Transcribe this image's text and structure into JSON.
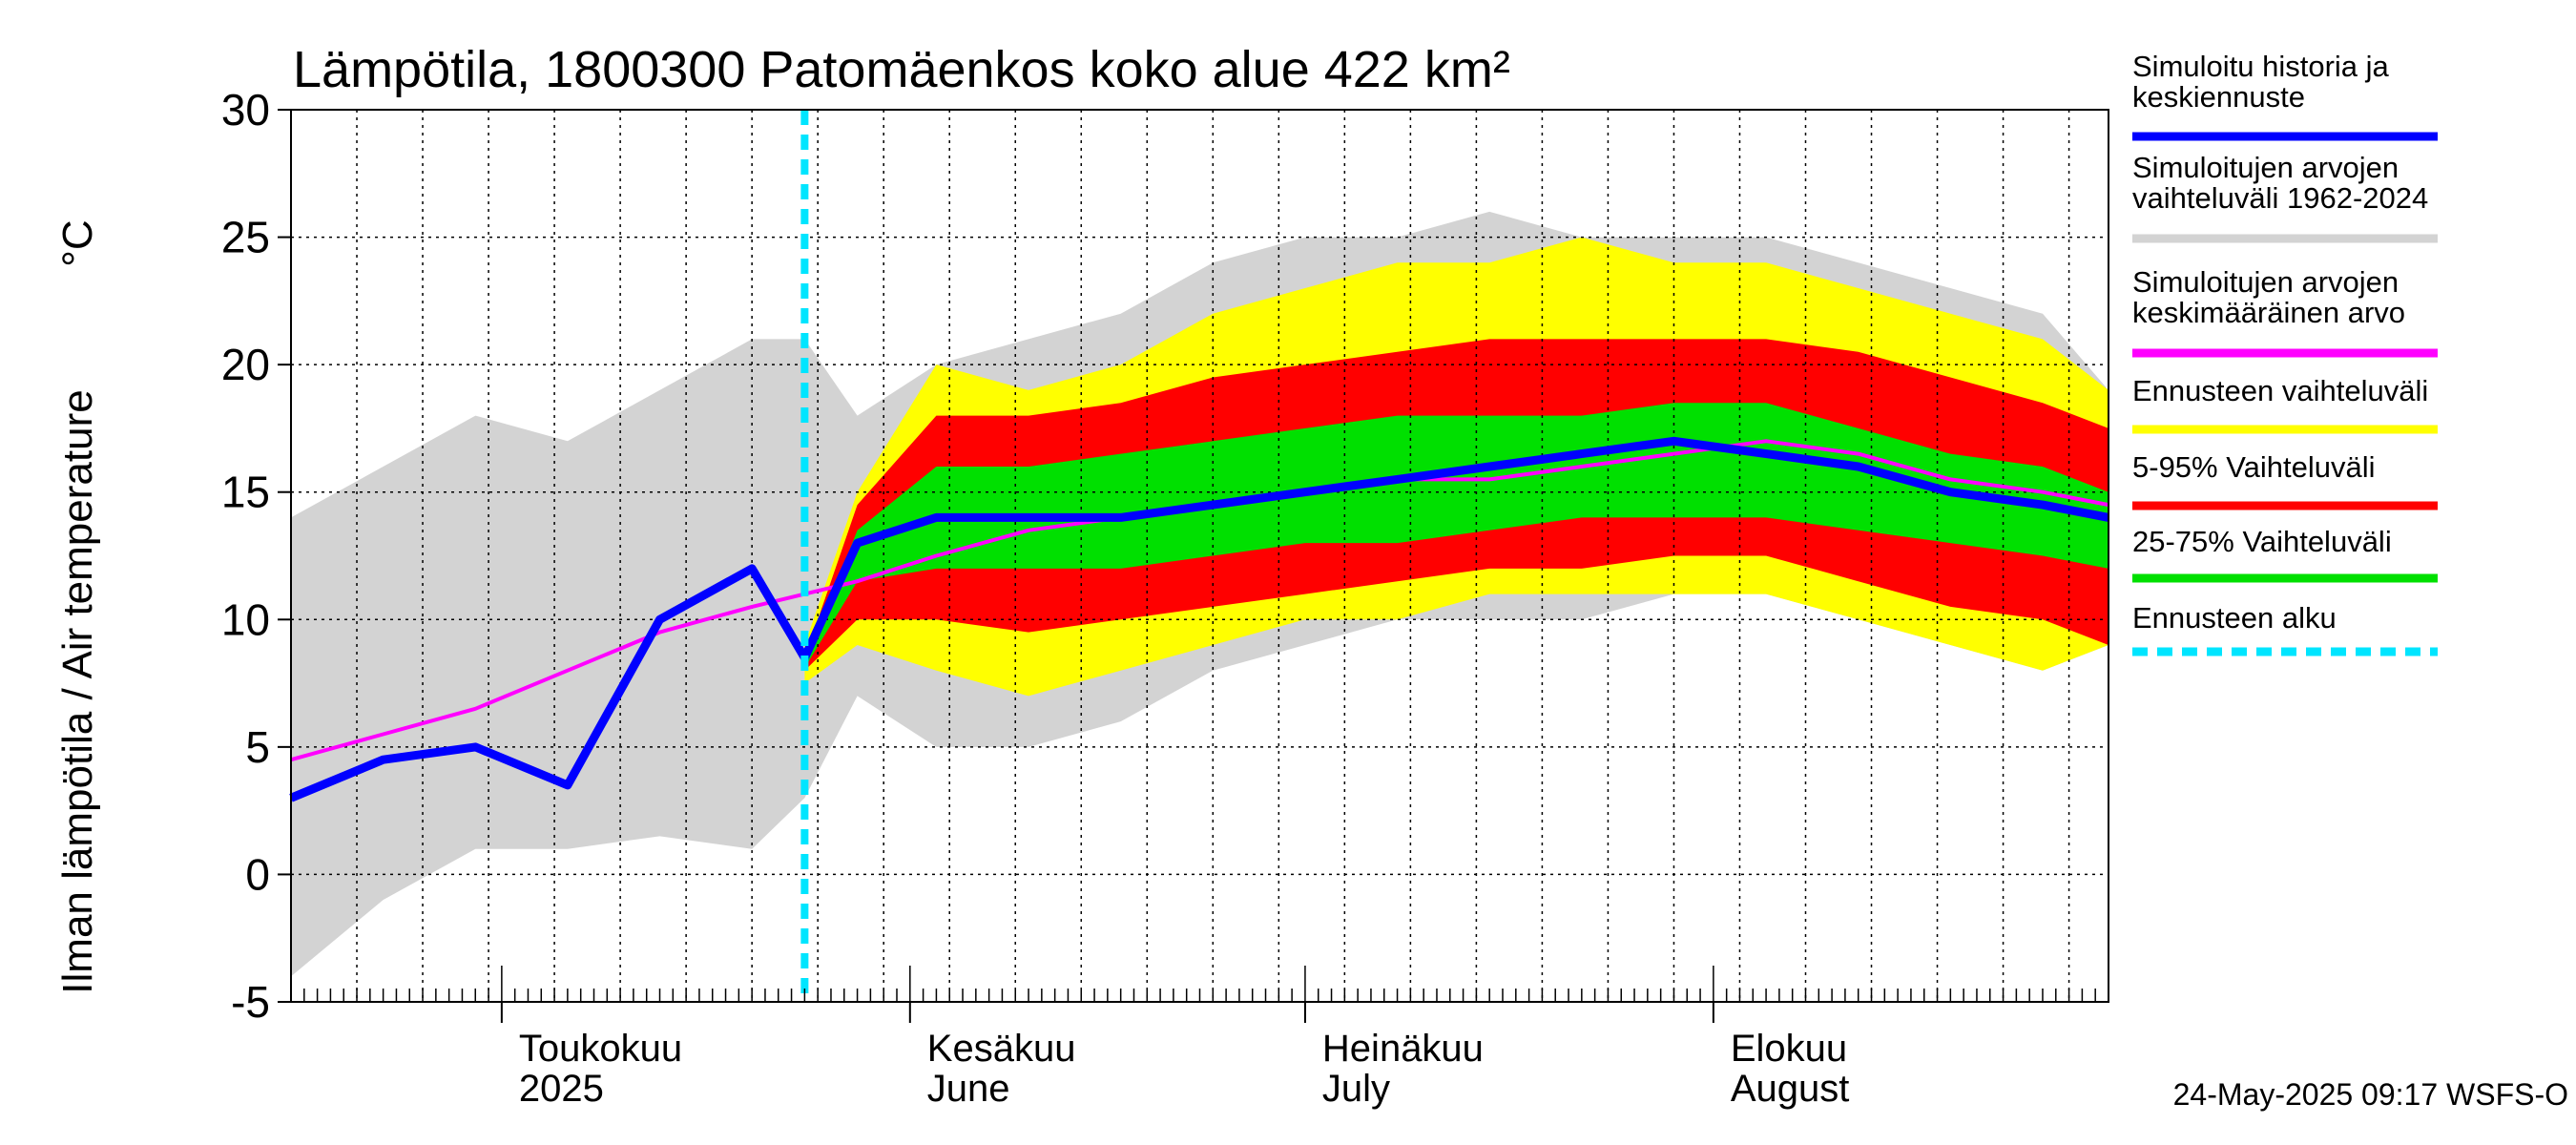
{
  "chart_data": {
    "type": "area",
    "title": "Lämpötila, 1800300 Patomäenkos koko alue 422 km²",
    "ylabel": "Ilman lämpötila / Air temperature",
    "yunit": "°C",
    "ylim": [
      -5,
      30
    ],
    "yticks": [
      -5,
      0,
      5,
      10,
      15,
      20,
      25,
      30
    ],
    "xlim": [
      "2025-04-15",
      "2025-08-31"
    ],
    "grid": true,
    "legend_position": "right",
    "forecast_start": "2025-05-24",
    "month_labels": [
      {
        "date": "2025-05-01",
        "line1": "Toukokuu",
        "line2": "2025"
      },
      {
        "date": "2025-06-01",
        "line1": "Kesäkuu",
        "line2": "June"
      },
      {
        "date": "2025-07-01",
        "line1": "Heinäkuu",
        "line2": "July"
      },
      {
        "date": "2025-08-01",
        "line1": "Elokuu",
        "line2": "August"
      }
    ],
    "x_knots": [
      "2025-04-15",
      "2025-04-22",
      "2025-04-29",
      "2025-05-06",
      "2025-05-13",
      "2025-05-20",
      "2025-05-24",
      "2025-05-28",
      "2025-06-03",
      "2025-06-10",
      "2025-06-17",
      "2025-06-24",
      "2025-07-01",
      "2025-07-08",
      "2025-07-15",
      "2025-07-22",
      "2025-07-29",
      "2025-08-05",
      "2025-08-12",
      "2025-08-19",
      "2025-08-26",
      "2025-08-31"
    ],
    "series": [
      {
        "name": "Simuloitujen arvojen vaihteluväli 1962-2024",
        "kind": "band",
        "color": "#d3d3d3",
        "upper": [
          14,
          16,
          18,
          17,
          19,
          21,
          21,
          18,
          20,
          21,
          22,
          24,
          25,
          25,
          26,
          25,
          25,
          25,
          24,
          23,
          22,
          19
        ],
        "lower": [
          -4,
          -1,
          1,
          1,
          1.5,
          1,
          3,
          7,
          5,
          5,
          6,
          8,
          9,
          10,
          10,
          10,
          11,
          11,
          10,
          9,
          8,
          9
        ]
      },
      {
        "name": "Ennusteen vaihteluväli",
        "kind": "band",
        "color": "#ffff00",
        "upper": [
          null,
          null,
          null,
          null,
          null,
          null,
          9,
          15,
          20,
          19,
          20,
          22,
          23,
          24,
          24,
          25,
          24,
          24,
          23,
          22,
          21,
          19
        ],
        "lower": [
          null,
          null,
          null,
          null,
          null,
          null,
          7.5,
          9,
          8,
          7,
          8,
          9,
          10,
          10,
          11,
          11,
          11,
          11,
          10,
          9,
          8,
          9
        ]
      },
      {
        "name": "5-95% Vaihteluväli",
        "kind": "band",
        "color": "#ff0000",
        "upper": [
          null,
          null,
          null,
          null,
          null,
          null,
          8.5,
          14.5,
          18,
          18,
          18.5,
          19.5,
          20,
          20.5,
          21,
          21,
          21,
          21,
          20.5,
          19.5,
          18.5,
          17.5
        ],
        "lower": [
          null,
          null,
          null,
          null,
          null,
          null,
          8,
          10,
          10,
          9.5,
          10,
          10.5,
          11,
          11.5,
          12,
          12,
          12.5,
          12.5,
          11.5,
          10.5,
          10,
          9
        ]
      },
      {
        "name": "25-75% Vaihteluväli",
        "kind": "band",
        "color": "#00e000",
        "upper": [
          null,
          null,
          null,
          null,
          null,
          null,
          8.3,
          13.5,
          16,
          16,
          16.5,
          17,
          17.5,
          18,
          18,
          18,
          18.5,
          18.5,
          17.5,
          16.5,
          16,
          15
        ],
        "lower": [
          null,
          null,
          null,
          null,
          null,
          null,
          8.1,
          11.5,
          12,
          12,
          12,
          12.5,
          13,
          13,
          13.5,
          14,
          14,
          14,
          13.5,
          13,
          12.5,
          12
        ]
      },
      {
        "name": "Simuloitujen arvojen keskimääräinen arvo",
        "kind": "line",
        "color": "#ff00ff",
        "values": [
          4.5,
          5.5,
          6.5,
          8,
          9.5,
          10.5,
          11,
          11.5,
          12.5,
          13.5,
          14,
          14.5,
          15,
          15.5,
          15.5,
          16,
          16.5,
          17,
          16.5,
          15.5,
          15,
          14.5
        ]
      },
      {
        "name": "Simuloitu historia ja keskiennuste",
        "kind": "line",
        "color": "#0000ff",
        "values": [
          3,
          4.5,
          5,
          3.5,
          10,
          12,
          8.5,
          13,
          14,
          14,
          14,
          14.5,
          15,
          15.5,
          16,
          16.5,
          17,
          16.5,
          16,
          15,
          14.5,
          14
        ]
      }
    ],
    "legend": [
      {
        "label_lines": [
          "Simuloitu historia ja",
          "keskiennuste"
        ],
        "color": "#0000ff",
        "style": "solid"
      },
      {
        "label_lines": [
          "Simuloitujen arvojen",
          "vaihteluväli 1962-2024"
        ],
        "color": "#d3d3d3",
        "style": "solid"
      },
      {
        "label_lines": [
          "Simuloitujen arvojen",
          "keskimääräinen arvo"
        ],
        "color": "#ff00ff",
        "style": "solid"
      },
      {
        "label_lines": [
          "Ennusteen vaihteluväli"
        ],
        "color": "#ffff00",
        "style": "solid"
      },
      {
        "label_lines": [
          "5-95% Vaihteluväli"
        ],
        "color": "#ff0000",
        "style": "solid"
      },
      {
        "label_lines": [
          "25-75% Vaihteluväli"
        ],
        "color": "#00e000",
        "style": "solid"
      },
      {
        "label_lines": [
          "Ennusteen alku"
        ],
        "color": "#00e5ff",
        "style": "dashed"
      }
    ],
    "footer": "24-May-2025 09:17 WSFS-O"
  }
}
